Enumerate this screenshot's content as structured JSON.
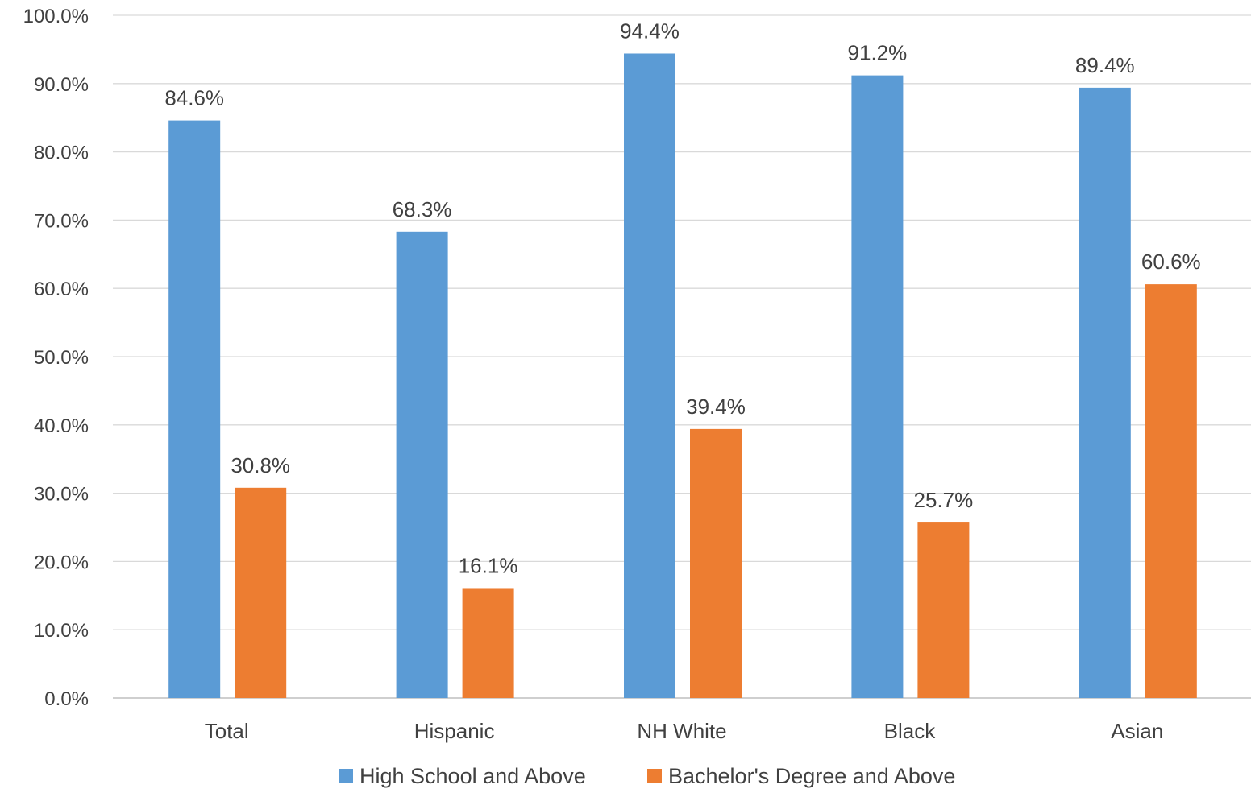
{
  "chart_data": {
    "type": "bar",
    "title": "",
    "xlabel": "",
    "ylabel": "",
    "categories": [
      "Total",
      "Hispanic",
      "NH White",
      "Black",
      "Asian"
    ],
    "series": [
      {
        "name": "High School and Above",
        "color": "#5B9BD5",
        "values": [
          84.6,
          68.3,
          94.4,
          91.2,
          89.4
        ],
        "labels": [
          "84.6%",
          "68.3%",
          "94.4%",
          "91.2%",
          "89.4%"
        ]
      },
      {
        "name": "Bachelor's Degree and Above",
        "color": "#ED7D31",
        "values": [
          30.8,
          16.1,
          39.4,
          25.7,
          60.6
        ],
        "labels": [
          "30.8%",
          "16.1%",
          "39.4%",
          "25.7%",
          "60.6%"
        ]
      }
    ],
    "ylim": [
      0,
      100
    ],
    "yticks": [
      0,
      10,
      20,
      30,
      40,
      50,
      60,
      70,
      80,
      90,
      100
    ],
    "ytick_labels": [
      "0.0%",
      "10.0%",
      "20.0%",
      "30.0%",
      "40.0%",
      "50.0%",
      "60.0%",
      "70.0%",
      "80.0%",
      "90.0%",
      "100.0%"
    ],
    "grid": true,
    "legend_position": "bottom"
  }
}
